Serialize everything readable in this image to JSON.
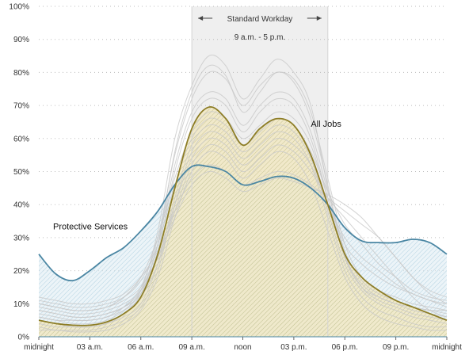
{
  "chart_data": {
    "type": "area",
    "xlabel": "",
    "ylabel": "",
    "xlim": [
      0,
      24
    ],
    "ylim": [
      0,
      100
    ],
    "grid": true,
    "x_ticks": [
      {
        "x": 0,
        "label": "midnight"
      },
      {
        "x": 3,
        "label": "03 a.m."
      },
      {
        "x": 6,
        "label": "06 a.m."
      },
      {
        "x": 9,
        "label": "09 a.m."
      },
      {
        "x": 12,
        "label": "noon"
      },
      {
        "x": 15,
        "label": "03 p.m."
      },
      {
        "x": 18,
        "label": "06 p.m."
      },
      {
        "x": 21,
        "label": "09 p.m."
      },
      {
        "x": 24,
        "label": "midnight"
      }
    ],
    "y_ticks": [
      {
        "y": 0,
        "label": "0%"
      },
      {
        "y": 10,
        "label": "10%"
      },
      {
        "y": 20,
        "label": "20%"
      },
      {
        "y": 30,
        "label": "30%"
      },
      {
        "y": 40,
        "label": "40%"
      },
      {
        "y": 50,
        "label": "50%"
      },
      {
        "y": 60,
        "label": "60%"
      },
      {
        "y": 70,
        "label": "70%"
      },
      {
        "y": 80,
        "label": "80%"
      },
      {
        "y": 90,
        "label": "90%"
      },
      {
        "y": 100,
        "label": "100%"
      }
    ],
    "band": {
      "from": 9,
      "to": 17,
      "title": "Standard Workday",
      "subtitle": "9 a.m. - 5 p.m."
    },
    "series": [
      {
        "name": "Protective Services",
        "color": "#4a86a3",
        "x": [
          0,
          1,
          2,
          3,
          4,
          5,
          6,
          7,
          8,
          9,
          10,
          11,
          12,
          13,
          14,
          15,
          16,
          17,
          18,
          19,
          20,
          21,
          22,
          23,
          24
        ],
        "values": [
          25,
          19,
          17,
          20,
          24,
          27,
          32,
          38,
          46,
          51.5,
          51.5,
          50,
          46,
          47,
          48.5,
          48,
          45,
          40,
          33,
          29,
          28.5,
          28.5,
          29.5,
          28.5,
          25
        ]
      },
      {
        "name": "All Jobs",
        "color": "#8d7d26",
        "x": [
          0,
          1,
          2,
          3,
          4,
          5,
          6,
          7,
          8,
          9,
          10,
          11,
          12,
          13,
          14,
          15,
          16,
          17,
          18,
          19,
          20,
          21,
          22,
          23,
          24
        ],
        "values": [
          5,
          4,
          3.5,
          3.5,
          4.5,
          7,
          12,
          25,
          45,
          63,
          69.5,
          66,
          58,
          63,
          66,
          64,
          55,
          40,
          25,
          18,
          14,
          11,
          9,
          7,
          5
        ]
      }
    ],
    "other_occupations": [
      [
        8,
        7,
        6,
        6,
        7,
        9,
        15,
        30,
        55,
        72,
        80,
        78,
        70,
        76,
        80,
        78,
        68,
        48,
        28,
        18,
        14,
        12,
        10,
        9,
        8
      ],
      [
        6,
        5,
        4,
        4,
        5,
        8,
        14,
        32,
        60,
        76,
        85,
        82,
        72,
        78,
        84,
        80,
        70,
        45,
        24,
        15,
        12,
        10,
        8,
        7,
        6
      ],
      [
        10,
        9,
        8,
        8,
        9,
        12,
        18,
        30,
        48,
        62,
        68,
        66,
        60,
        64,
        68,
        66,
        58,
        42,
        28,
        22,
        18,
        15,
        13,
        11,
        10
      ],
      [
        4,
        3,
        3,
        3,
        4,
        6,
        10,
        22,
        42,
        58,
        64,
        62,
        56,
        60,
        64,
        62,
        54,
        38,
        22,
        14,
        10,
        8,
        6,
        5,
        4
      ],
      [
        7,
        6,
        5,
        5,
        6,
        9,
        14,
        28,
        52,
        68,
        74,
        72,
        64,
        70,
        74,
        72,
        62,
        44,
        26,
        17,
        13,
        11,
        9,
        8,
        7
      ],
      [
        12,
        11,
        10,
        10,
        11,
        13,
        18,
        26,
        38,
        48,
        52,
        50,
        46,
        48,
        50,
        49,
        46,
        42,
        38,
        34,
        30,
        24,
        18,
        14,
        12
      ],
      [
        5,
        4,
        3,
        3,
        4,
        7,
        13,
        28,
        56,
        74,
        82,
        79,
        68,
        74,
        80,
        77,
        66,
        46,
        25,
        15,
        11,
        9,
        7,
        6,
        5
      ],
      [
        9,
        8,
        7,
        7,
        8,
        10,
        14,
        24,
        40,
        54,
        60,
        58,
        52,
        56,
        60,
        58,
        52,
        40,
        30,
        24,
        20,
        16,
        13,
        11,
        9
      ],
      [
        3,
        2,
        2,
        2,
        3,
        5,
        9,
        20,
        40,
        56,
        62,
        60,
        54,
        58,
        62,
        60,
        52,
        36,
        20,
        12,
        8,
        6,
        4,
        3,
        3
      ],
      [
        11,
        10,
        9,
        9,
        10,
        12,
        17,
        28,
        46,
        60,
        66,
        64,
        58,
        62,
        66,
        64,
        56,
        44,
        34,
        28,
        22,
        18,
        14,
        12,
        11
      ],
      [
        6,
        5,
        5,
        5,
        6,
        8,
        12,
        22,
        38,
        52,
        58,
        56,
        50,
        54,
        58,
        56,
        50,
        42,
        36,
        30,
        24,
        18,
        12,
        8,
        6
      ],
      [
        8,
        7,
        6,
        6,
        7,
        9,
        13,
        26,
        50,
        66,
        72,
        70,
        62,
        68,
        72,
        70,
        60,
        42,
        24,
        16,
        12,
        10,
        9,
        8,
        8
      ],
      [
        2,
        2,
        1.5,
        1.5,
        2,
        4,
        8,
        18,
        36,
        50,
        56,
        54,
        48,
        52,
        56,
        54,
        46,
        32,
        18,
        10,
        6,
        4,
        3,
        2,
        2
      ],
      [
        10,
        9,
        8,
        8,
        9,
        11,
        15,
        24,
        36,
        46,
        50,
        48,
        44,
        46,
        48,
        47,
        45,
        43,
        40,
        36,
        30,
        24,
        18,
        13,
        10
      ]
    ]
  }
}
